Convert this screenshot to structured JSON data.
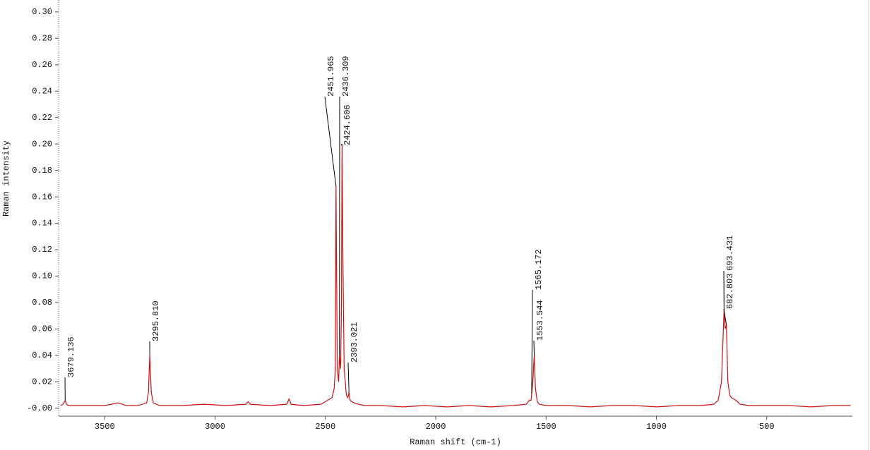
{
  "chart_data": {
    "type": "line",
    "x_label": "Raman shift (cm-1)",
    "y_label": "Raman intensity",
    "color": "#cc1111",
    "x": [
      3700,
      3690,
      3685,
      3679.136,
      3673,
      3665,
      3600,
      3500,
      3440,
      3400,
      3350,
      3310,
      3302,
      3295.81,
      3289,
      3280,
      3250,
      3150,
      3050,
      2950,
      2860,
      2850,
      2840,
      2750,
      2675,
      2665,
      2655,
      2600,
      2520,
      2490,
      2470,
      2460,
      2455,
      2451.965,
      2446,
      2440,
      2436.309,
      2431,
      2427,
      2424.606,
      2421,
      2415,
      2405,
      2398,
      2393.021,
      2388,
      2380,
      2370,
      2350,
      2320,
      2250,
      2150,
      2050,
      1950,
      1850,
      1750,
      1650,
      1590,
      1575,
      1568,
      1565.172,
      1560,
      1553.544,
      1548,
      1540,
      1530,
      1500,
      1400,
      1300,
      1200,
      1100,
      1000,
      900,
      800,
      740,
      720,
      705,
      693.431,
      688,
      682.803,
      676,
      668,
      660,
      640,
      620,
      580,
      500,
      400,
      300,
      200,
      120
    ],
    "values": [
      0.002,
      0.003,
      0.004,
      0.006,
      0.003,
      0.002,
      0.002,
      0.002,
      0.004,
      0.002,
      0.002,
      0.004,
      0.012,
      0.04,
      0.012,
      0.004,
      0.002,
      0.002,
      0.003,
      0.002,
      0.003,
      0.005,
      0.003,
      0.002,
      0.003,
      0.007,
      0.003,
      0.002,
      0.003,
      0.006,
      0.008,
      0.015,
      0.03,
      0.168,
      0.03,
      0.02,
      0.04,
      0.03,
      0.08,
      0.2,
      0.12,
      0.03,
      0.01,
      0.008,
      0.012,
      0.006,
      0.005,
      0.004,
      0.003,
      0.002,
      0.002,
      0.001,
      0.002,
      0.001,
      0.002,
      0.001,
      0.002,
      0.003,
      0.006,
      0.006,
      0.011,
      0.02,
      0.04,
      0.015,
      0.005,
      0.003,
      0.002,
      0.002,
      0.001,
      0.002,
      0.002,
      0.001,
      0.002,
      0.002,
      0.003,
      0.006,
      0.02,
      0.074,
      0.06,
      0.063,
      0.02,
      0.01,
      0.008,
      0.006,
      0.003,
      0.002,
      0.002,
      0.002,
      0.001,
      0.002,
      0.002
    ],
    "xlim": [
      3709,
      112
    ],
    "ylim": [
      -0.006,
      0.309
    ],
    "xticks": [
      3500,
      3000,
      2500,
      2000,
      1500,
      1000,
      500
    ],
    "yticks": [
      {
        "value": 0,
        "label": "-0.00"
      },
      0.02,
      0.04,
      0.06,
      0.08,
      {
        "value": 0.1,
        "label": "0.10"
      },
      0.12,
      0.14,
      0.16,
      0.18,
      {
        "value": 0.2,
        "label": "0.20"
      },
      0.22,
      0.24,
      0.26,
      0.28,
      {
        "value": 0.3,
        "label": "0.30"
      }
    ],
    "annotations": [
      {
        "label": "3679.136",
        "x": 3679.136,
        "y": 0.006
      },
      {
        "label": "3295.810",
        "x": 3295.81,
        "y": 0.04
      },
      {
        "label": "2451.965",
        "x": 2451.965,
        "y": 0.168
      },
      {
        "label": "2436.309",
        "x": 2436.309,
        "y": 0.04
      },
      {
        "label": "2424.606",
        "x": 2424.606,
        "y": 0.2
      },
      {
        "label": "2393.021",
        "x": 2393.021,
        "y": 0.012
      },
      {
        "label": "1565.172",
        "x": 1565.172,
        "y": 0.011
      },
      {
        "label": "1553.544",
        "x": 1553.544,
        "y": 0.04
      },
      {
        "label": "693.431",
        "x": 693.431,
        "y": 0.074
      },
      {
        "label": "682.803",
        "x": 682.803,
        "y": 0.063
      }
    ]
  }
}
